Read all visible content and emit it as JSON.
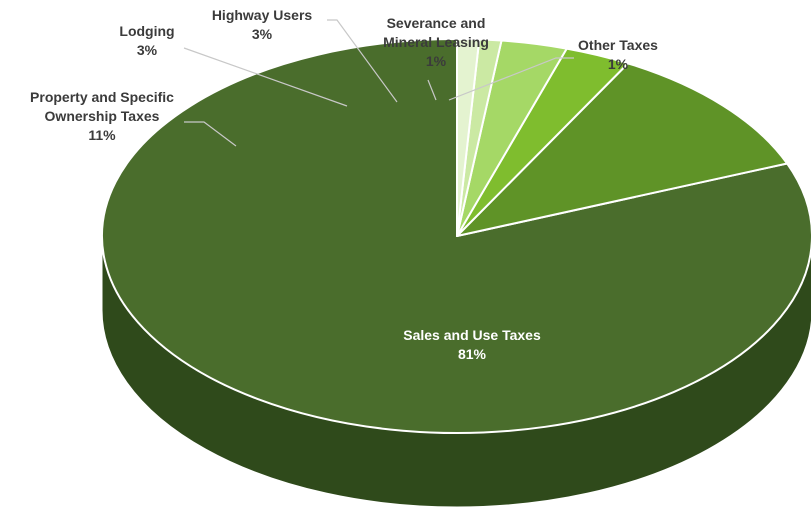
{
  "chart_data": {
    "type": "pie",
    "title": "",
    "style": "3d",
    "slices": [
      {
        "label": [
          "Sales and Use Taxes"
        ],
        "pct_text": "81%",
        "value": 81,
        "color": "#4a6d2c",
        "side_color": "#2f4a1b"
      },
      {
        "label": [
          "Property and Specific",
          "Ownership Taxes"
        ],
        "pct_text": "11%",
        "value": 11,
        "color": "#5f9327",
        "side_color": "#3d6418"
      },
      {
        "label": [
          "Lodging"
        ],
        "pct_text": "3%",
        "value": 3,
        "color": "#7fbd2e",
        "side_color": "#5a8a20"
      },
      {
        "label": [
          "Highway Users"
        ],
        "pct_text": "3%",
        "value": 3,
        "color": "#a5d866",
        "side_color": "#7aa948"
      },
      {
        "label": [
          "Severance and",
          "Mineral Leasing"
        ],
        "pct_text": "1%",
        "value": 1,
        "color": "#cbe9a3",
        "side_color": "#9cbd77"
      },
      {
        "label": [
          "Other Taxes"
        ],
        "pct_text": "1%",
        "value": 1,
        "color": "#e4f3d0",
        "side_color": "#b6c9a0"
      }
    ]
  }
}
